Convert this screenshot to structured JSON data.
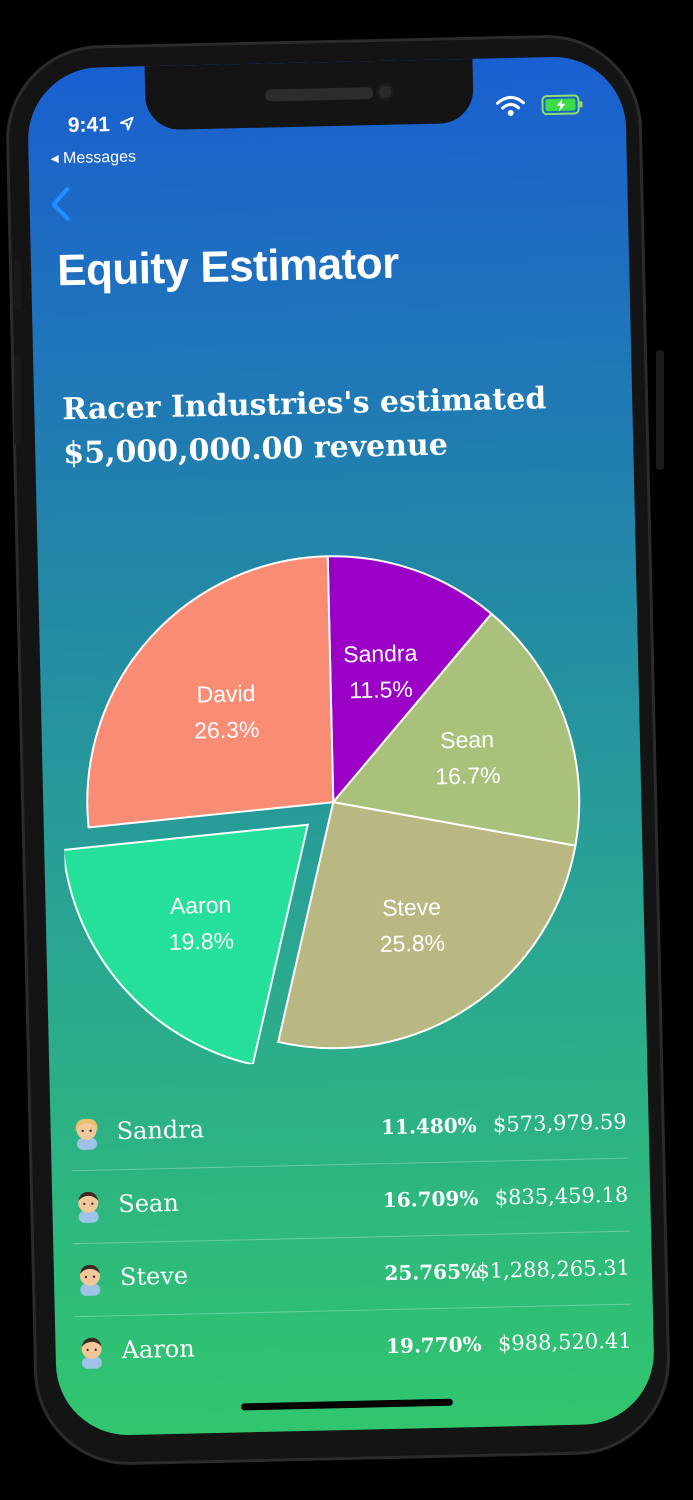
{
  "status_bar": {
    "time": "9:41",
    "back_app": "◂ Messages"
  },
  "nav": {
    "title": "Equity Estimator"
  },
  "headline": {
    "line1": "Racer Industries's estimated",
    "line2": "$5,000,000.00 revenue"
  },
  "colors": {
    "sandra": "#9b00c6",
    "sean": "#a9c17a",
    "steve": "#b9b882",
    "aaron": "#25e09a",
    "david": "#f98c74"
  },
  "chart_data": {
    "type": "pie",
    "series": [
      {
        "name": "Sandra",
        "label": "11.5%",
        "value": 11.48,
        "color": "#9b00c6"
      },
      {
        "name": "Sean",
        "label": "16.7%",
        "value": 16.709,
        "color": "#a9c17a"
      },
      {
        "name": "Steve",
        "label": "25.8%",
        "value": 25.765,
        "color": "#b9b882"
      },
      {
        "name": "Aaron",
        "label": "19.8%",
        "value": 19.77,
        "color": "#25e09a",
        "exploded": true
      },
      {
        "name": "David",
        "label": "26.3%",
        "value": 26.276,
        "color": "#f98c74"
      }
    ]
  },
  "shareholders": [
    {
      "name": "Sandra",
      "percent": "11.480%",
      "amount": "$573,979.59",
      "avatar": "woman-emoji-icon"
    },
    {
      "name": "Sean",
      "percent": "16.709%",
      "amount": "$835,459.18",
      "avatar": "man-emoji-icon"
    },
    {
      "name": "Steve",
      "percent": "25.765%",
      "amount": "$1,288,265.31",
      "avatar": "man-emoji-icon"
    },
    {
      "name": "Aaron",
      "percent": "19.770%",
      "amount": "$988,520.41",
      "avatar": "man-emoji-icon"
    }
  ]
}
